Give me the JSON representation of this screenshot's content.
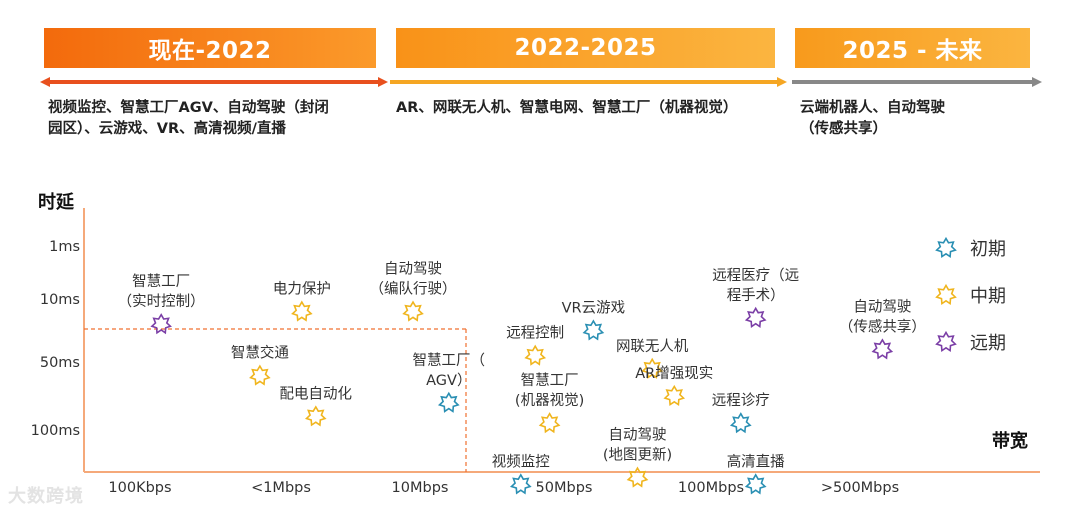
{
  "phases": [
    {
      "label": "现在-2022",
      "color": "#f36a0c",
      "desc": [
        "视频监控、智慧工厂AGV、自动驾驶（封闭",
        "园区）、云游戏、VR、高清视频/直播"
      ]
    },
    {
      "label": "2022-2025",
      "color": "#f99218",
      "desc": [
        "AR、网联无人机、智慧电网、智慧工厂（机器视觉）"
      ]
    },
    {
      "label": "2025 - 未来",
      "color": "#f89a1c",
      "desc": [
        "云端机器人、自动驾驶",
        "（传感共享）"
      ]
    }
  ],
  "timeline_colors": [
    "#e8501e",
    "#f5a623",
    "#888888"
  ],
  "watermark": "大数跨境",
  "chart_data": {
    "type": "scatter",
    "xlabel": "带宽",
    "ylabel": "时延",
    "x_ticks": [
      "100Kbps",
      "<1Mbps",
      "10Mbps",
      "50Mbps",
      "100Mbps",
      ">500Mbps"
    ],
    "y_ticks": [
      "1ms",
      "10ms",
      "50ms",
      "100ms"
    ],
    "legend": [
      {
        "name": "初期",
        "color": "#2a8fb3"
      },
      {
        "name": "中期",
        "color": "#f0b51e"
      },
      {
        "name": "远期",
        "color": "#7b3fa6"
      }
    ],
    "points": [
      {
        "lines": [
          "智慧工厂",
          "（实时控制）"
        ],
        "x": 0.15,
        "y": 1.4,
        "phase": "远期"
      },
      {
        "lines": [
          "电力保护"
        ],
        "x": 1.15,
        "y": 1.2,
        "phase": "中期"
      },
      {
        "lines": [
          "自动驾驶",
          "（编队行驶）"
        ],
        "x": 1.95,
        "y": 1.2,
        "phase": "中期"
      },
      {
        "lines": [
          "智慧交通"
        ],
        "x": 0.85,
        "y": 2.2,
        "phase": "中期"
      },
      {
        "lines": [
          "配电自动化"
        ],
        "x": 1.25,
        "y": 2.8,
        "phase": "中期"
      },
      {
        "lines": [
          "智慧工厂（",
          "AGV）"
        ],
        "x": 2.2,
        "y": 2.6,
        "phase": "初期"
      },
      {
        "lines": [
          "远程控制"
        ],
        "x": 2.8,
        "y": 1.9,
        "phase": "中期"
      },
      {
        "lines": [
          "VR云游戏"
        ],
        "x": 3.2,
        "y": 1.5,
        "phase": "初期"
      },
      {
        "lines": [
          "智慧工厂",
          "(机器视觉)"
        ],
        "x": 2.9,
        "y": 2.9,
        "phase": "中期"
      },
      {
        "lines": [
          "视频监控"
        ],
        "x": 2.7,
        "y": 3.8,
        "phase": "初期"
      },
      {
        "lines": [
          "网联无人机"
        ],
        "x": 3.6,
        "y": 2.1,
        "phase": "中期"
      },
      {
        "lines": [
          "AR增强现实"
        ],
        "x": 3.75,
        "y": 2.5,
        "phase": "中期"
      },
      {
        "lines": [
          "自动驾驶",
          "(地图更新)"
        ],
        "x": 3.5,
        "y": 3.7,
        "phase": "中期"
      },
      {
        "lines": [
          "远程医疗（远",
          "程手术）"
        ],
        "x": 4.3,
        "y": 1.3,
        "phase": "远期"
      },
      {
        "lines": [
          "远程诊疗"
        ],
        "x": 4.2,
        "y": 2.9,
        "phase": "初期"
      },
      {
        "lines": [
          "高清直播"
        ],
        "x": 4.3,
        "y": 3.8,
        "phase": "初期"
      },
      {
        "lines": [
          "自动驾驶",
          "（传感共享）"
        ],
        "x": 5.15,
        "y": 1.8,
        "phase": "远期"
      }
    ]
  }
}
